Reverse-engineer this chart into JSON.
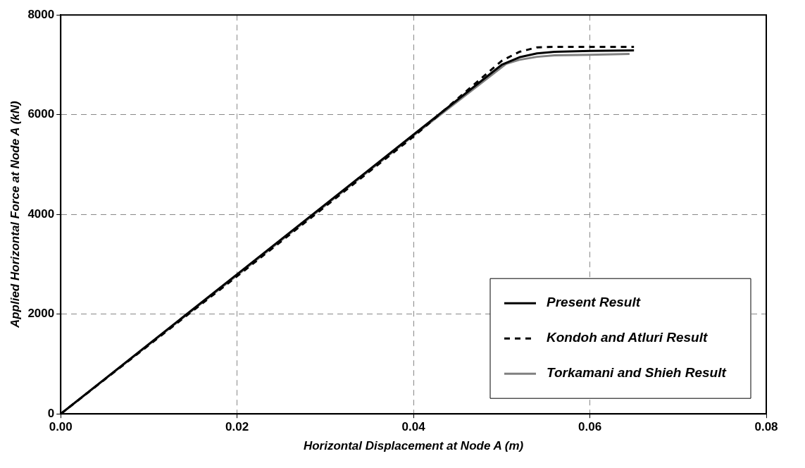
{
  "chart_data": {
    "type": "line",
    "xlabel": "Horizontal Displacement at Node A (m)",
    "ylabel": "Applied Horizontal Force at Node A (kN)",
    "xlim": [
      0,
      0.08
    ],
    "xticks": [
      {
        "value": 0,
        "label": "0.00"
      },
      {
        "value": 0.02,
        "label": "0.02"
      },
      {
        "value": 0.04,
        "label": "0.04"
      },
      {
        "value": 0.06,
        "label": "0.06"
      },
      {
        "value": 0.08,
        "label": "0.08"
      }
    ],
    "ylim": [
      0,
      8000
    ],
    "yticks": [
      0,
      2000,
      4000,
      6000,
      8000
    ],
    "grid": true,
    "legend": "bottom right",
    "marker": "none",
    "series": [
      {
        "name": "Present Result",
        "color": "#000000",
        "line_style": "solid",
        "x": [
          0,
          0.02,
          0.04,
          0.05,
          0.052,
          0.054,
          0.056,
          0.06,
          0.065
        ],
        "values": [
          0,
          2800,
          5600,
          7000,
          7150,
          7230,
          7260,
          7280,
          7290
        ]
      },
      {
        "name": "Kondoh and Atluri Result",
        "color": "#000000",
        "line_style": "dashed",
        "x": [
          0,
          0.02,
          0.04,
          0.05,
          0.052,
          0.054,
          0.056,
          0.06,
          0.065
        ],
        "values": [
          0,
          2760,
          5560,
          7080,
          7260,
          7350,
          7360,
          7360,
          7360
        ]
      },
      {
        "name": "Torkamani and Shieh Result",
        "color": "#808080",
        "line_style": "solid",
        "x": [
          0,
          0.02,
          0.04,
          0.0505,
          0.052,
          0.054,
          0.056,
          0.06,
          0.0645
        ],
        "values": [
          0,
          2780,
          5580,
          7020,
          7100,
          7160,
          7190,
          7200,
          7220
        ]
      }
    ]
  }
}
